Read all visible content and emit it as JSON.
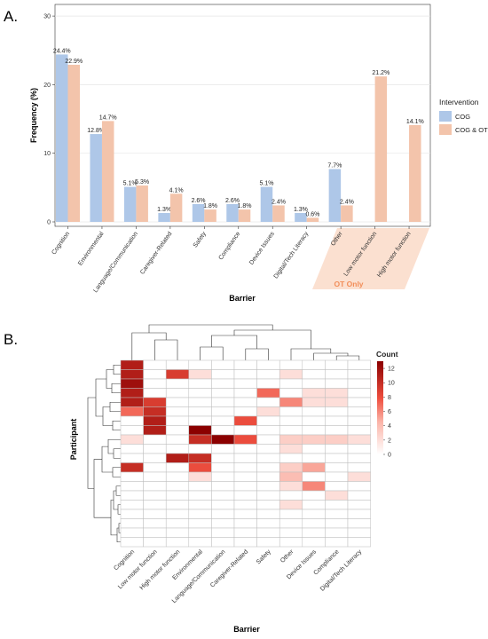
{
  "chart_data": [
    {
      "panel": "A.",
      "type": "bar",
      "xlabel": "Barrier",
      "ylabel": "Frequency (%)",
      "ylim": [
        0,
        30
      ],
      "yticks": [
        0,
        10,
        20,
        30
      ],
      "grid": true,
      "legend_position": "right",
      "legend_title": "Intervention",
      "categories": [
        "Cognition",
        "Environmental",
        "Language/Communication",
        "Caregiver-Related",
        "Safety",
        "Compliance",
        "Device Issues",
        "Digital/Tech Literacy",
        "Other",
        "Low motor function",
        "High motor function"
      ],
      "ot_only_label": "OT Only",
      "ot_only_categories": [
        "Low motor function",
        "High motor function"
      ],
      "series": [
        {
          "name": "COG",
          "color": "#aec7e8",
          "values": [
            24.4,
            12.8,
            5.1,
            1.3,
            2.6,
            2.6,
            5.1,
            1.3,
            7.7,
            null,
            null
          ],
          "labels": [
            "24.4%",
            "12.8%",
            "5.1%",
            "1.3%",
            "2.6%",
            "2.6%",
            "5.1%",
            "1.3%",
            "7.7%",
            "",
            ""
          ]
        },
        {
          "name": "COG & OT",
          "color": "#f3c4ab",
          "values": [
            22.9,
            14.7,
            5.3,
            4.1,
            1.8,
            1.8,
            2.4,
            0.6,
            2.4,
            21.2,
            14.1
          ],
          "labels": [
            "22.9%",
            "14.7%",
            "5.3%",
            "4.1%",
            "1.8%",
            "1.8%",
            "2.4%",
            "0.6%",
            "2.4%",
            "21.2%",
            "14.1%"
          ]
        }
      ]
    },
    {
      "panel": "B.",
      "type": "heatmap",
      "xlabel": "Barrier",
      "ylabel": "Participant",
      "columns": [
        "Cognition",
        "Low motor function",
        "High motor function",
        "Environmental",
        "Language/Communication",
        "Caregiver-Related",
        "Safety",
        "Other",
        "Device Issues",
        "Compliance",
        "Digital/Tech Literacy"
      ],
      "colorbar_title": "Count",
      "colorbar_ticks": [
        0,
        2,
        4,
        6,
        8,
        10,
        12
      ],
      "color_range": [
        0,
        13
      ],
      "color_low": "#ffffff",
      "color_high": "#8b0000",
      "matrix": [
        [
          11,
          0,
          0,
          0,
          0,
          0,
          0,
          0,
          0,
          0,
          0
        ],
        [
          11,
          0,
          9,
          2,
          0,
          0,
          0,
          2,
          0,
          0,
          0
        ],
        [
          12,
          0,
          0,
          0,
          0,
          0,
          0,
          0,
          0,
          0,
          0
        ],
        [
          11,
          0,
          0,
          0,
          0,
          0,
          7,
          0,
          2,
          2,
          0
        ],
        [
          11,
          9,
          0,
          0,
          0,
          0,
          0,
          6,
          2,
          2,
          0
        ],
        [
          7,
          10,
          0,
          0,
          0,
          0,
          2,
          0,
          0,
          0,
          0
        ],
        [
          0,
          11,
          0,
          0,
          0,
          8,
          0,
          0,
          0,
          0,
          0
        ],
        [
          0,
          11,
          0,
          13,
          0,
          0,
          0,
          0,
          0,
          0,
          0
        ],
        [
          2,
          0,
          0,
          10,
          13,
          8,
          0,
          3,
          3,
          3,
          2
        ],
        [
          0,
          0,
          0,
          0,
          0,
          0,
          0,
          2,
          0,
          0,
          0
        ],
        [
          0,
          0,
          11,
          10,
          0,
          0,
          0,
          0,
          0,
          0,
          0
        ],
        [
          10,
          0,
          0,
          8,
          0,
          0,
          0,
          3,
          5,
          0,
          0
        ],
        [
          0,
          0,
          0,
          2,
          0,
          0,
          0,
          4,
          0,
          0,
          2
        ],
        [
          0,
          0,
          0,
          0,
          0,
          0,
          0,
          2,
          6,
          0,
          0
        ],
        [
          0,
          0,
          0,
          0,
          0,
          0,
          0,
          0,
          0,
          2,
          0
        ],
        [
          0,
          0,
          0,
          0,
          0,
          0,
          0,
          2,
          0,
          0,
          0
        ],
        [
          0,
          0,
          0,
          0,
          0,
          0,
          0,
          0,
          0,
          0,
          0
        ],
        [
          0,
          0,
          0,
          0,
          0,
          0,
          0,
          0,
          0,
          0,
          0
        ],
        [
          0,
          0,
          0,
          0,
          0,
          0,
          0,
          0,
          0,
          0,
          0
        ],
        [
          0,
          0,
          0,
          0,
          0,
          0,
          0,
          0,
          0,
          0,
          0
        ]
      ]
    }
  ]
}
